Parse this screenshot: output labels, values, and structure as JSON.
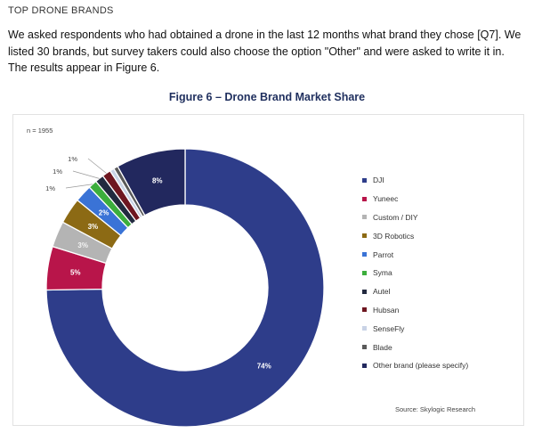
{
  "header": {
    "section_title": "TOP DRONE BRANDS",
    "intro": "We asked respondents who had obtained a drone in the last 12 months what brand they chose [Q7]. We listed 30 brands, but survey takers could also choose the option \"Other\" and were asked to write it in. The results appear in Figure 6."
  },
  "figure": {
    "title": "Figure 6 – Drone Brand Market Share",
    "n_label": "n = 1955",
    "source": "Source: Skylogic Research"
  },
  "chart_data": {
    "type": "pie",
    "subtype": "donut",
    "title": "Figure 6 – Drone Brand Market Share",
    "legend_position": "right",
    "series": [
      {
        "name": "DJI",
        "value": 74,
        "label": "74%",
        "color": "#2e3d8a"
      },
      {
        "name": "Yuneec",
        "value": 5,
        "label": "5%",
        "color": "#b8154a"
      },
      {
        "name": "Custom / DIY",
        "value": 3,
        "label": "3%",
        "color": "#b4b4b4"
      },
      {
        "name": "3D Robotics",
        "value": 3,
        "label": "3%",
        "color": "#8c6a14"
      },
      {
        "name": "Parrot",
        "value": 2,
        "label": "2%",
        "color": "#3a73d6"
      },
      {
        "name": "Syma",
        "value": 1,
        "label": "1%",
        "color": "#3cae3c"
      },
      {
        "name": "Autel",
        "value": 1,
        "label": "1%",
        "color": "#222a3f"
      },
      {
        "name": "Hubsan",
        "value": 1,
        "label": "1%",
        "color": "#6e1620"
      },
      {
        "name": "SenseFly",
        "value": 0.5,
        "label": "",
        "color": "#c9d3e6"
      },
      {
        "name": "Blade",
        "value": 0.5,
        "label": "",
        "color": "#5a5a5a"
      },
      {
        "name": "Other brand (please specify)",
        "value": 8,
        "label": "8%",
        "color": "#22285e"
      }
    ]
  }
}
